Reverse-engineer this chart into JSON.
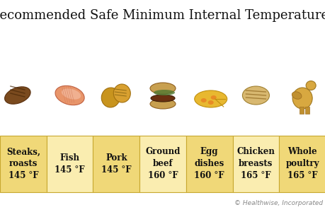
{
  "title": "Recommended Safe Minimum Internal Temperatures",
  "title_fontsize": 13,
  "background_color": "#ffffff",
  "items": [
    {
      "label": "Steaks,\nroasts\n145 °F"
    },
    {
      "label": "Fish\n145 °F"
    },
    {
      "label": "Pork\n145 °F"
    },
    {
      "label": "Ground\nbeef\n160 °F"
    },
    {
      "label": "Egg\ndishes\n160 °F"
    },
    {
      "label": "Chicken\nbreasts\n165 °F"
    },
    {
      "label": "Whole\npoultry\n165 °F"
    }
  ],
  "box_colors_alt": [
    "#f0d878",
    "#faedb0"
  ],
  "box_border_color": "#c8a830",
  "label_fontsize": 8.5,
  "copyright_text": "© Healthwise, Incorporated",
  "copyright_fontsize": 6.5
}
